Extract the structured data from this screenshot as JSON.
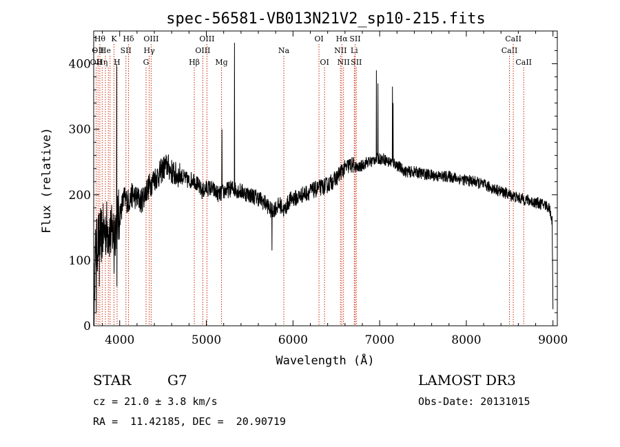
{
  "chart_data": {
    "type": "line",
    "title": "spec-56581-VB013N21V2_sp10-215.fits",
    "xlabel": "Wavelength (Å)",
    "ylabel": "Flux (relative)",
    "xlim": [
      3700,
      9050
    ],
    "ylim": [
      0,
      450
    ],
    "xticks": [
      4000,
      5000,
      6000,
      7000,
      8000,
      9000
    ],
    "yticks": [
      0,
      100,
      200,
      300,
      400
    ],
    "continuum": [
      [
        3700,
        60
      ],
      [
        3720,
        110
      ],
      [
        3750,
        130
      ],
      [
        3800,
        140
      ],
      [
        3850,
        150
      ],
      [
        3900,
        140
      ],
      [
        3950,
        150
      ],
      [
        4000,
        170
      ],
      [
        4050,
        195
      ],
      [
        4100,
        190
      ],
      [
        4150,
        200
      ],
      [
        4200,
        195
      ],
      [
        4250,
        190
      ],
      [
        4300,
        205
      ],
      [
        4350,
        215
      ],
      [
        4400,
        225
      ],
      [
        4450,
        230
      ],
      [
        4500,
        240
      ],
      [
        4550,
        245
      ],
      [
        4600,
        235
      ],
      [
        4650,
        230
      ],
      [
        4700,
        230
      ],
      [
        4750,
        225
      ],
      [
        4800,
        220
      ],
      [
        4850,
        225
      ],
      [
        4900,
        215
      ],
      [
        4950,
        205
      ],
      [
        5000,
        210
      ],
      [
        5050,
        210
      ],
      [
        5100,
        205
      ],
      [
        5150,
        200
      ],
      [
        5200,
        205
      ],
      [
        5300,
        210
      ],
      [
        5400,
        205
      ],
      [
        5500,
        200
      ],
      [
        5600,
        195
      ],
      [
        5700,
        185
      ],
      [
        5750,
        175
      ],
      [
        5800,
        180
      ],
      [
        5850,
        185
      ],
      [
        5900,
        175
      ],
      [
        5950,
        190
      ],
      [
        6000,
        195
      ],
      [
        6050,
        195
      ],
      [
        6100,
        200
      ],
      [
        6200,
        205
      ],
      [
        6300,
        210
      ],
      [
        6400,
        215
      ],
      [
        6450,
        220
      ],
      [
        6500,
        225
      ],
      [
        6550,
        235
      ],
      [
        6600,
        240
      ],
      [
        6650,
        245
      ],
      [
        6700,
        245
      ],
      [
        6750,
        240
      ],
      [
        6800,
        245
      ],
      [
        6850,
        250
      ],
      [
        6900,
        250
      ],
      [
        6950,
        255
      ],
      [
        7000,
        255
      ],
      [
        7050,
        255
      ],
      [
        7100,
        250
      ],
      [
        7150,
        250
      ],
      [
        7200,
        245
      ],
      [
        7250,
        240
      ],
      [
        7300,
        235
      ],
      [
        7400,
        235
      ],
      [
        7500,
        232
      ],
      [
        7600,
        230
      ],
      [
        7700,
        228
      ],
      [
        7800,
        228
      ],
      [
        7900,
        225
      ],
      [
        8000,
        222
      ],
      [
        8100,
        220
      ],
      [
        8200,
        215
      ],
      [
        8300,
        210
      ],
      [
        8400,
        205
      ],
      [
        8500,
        200
      ],
      [
        8600,
        195
      ],
      [
        8700,
        192
      ],
      [
        8800,
        188
      ],
      [
        8900,
        185
      ],
      [
        8960,
        180
      ],
      [
        8990,
        160
      ],
      [
        9000,
        30
      ]
    ],
    "peaks": [
      {
        "x": 3965,
        "y": 400
      },
      {
        "x": 5180,
        "y": 300
      },
      {
        "x": 5325,
        "y": 432
      },
      {
        "x": 6963,
        "y": 390
      },
      {
        "x": 6980,
        "y": 370
      },
      {
        "x": 7148,
        "y": 365
      },
      {
        "x": 7155,
        "y": 340
      }
    ],
    "dips": [
      {
        "x": 3705,
        "y": 0
      },
      {
        "x": 3730,
        "y": 20
      },
      {
        "x": 3765,
        "y": 60
      },
      {
        "x": 3935,
        "y": 80
      },
      {
        "x": 3968,
        "y": 60
      },
      {
        "x": 5758,
        "y": 115
      }
    ],
    "spectral_lines": [
      {
        "x": 3728,
        "label": "OII",
        "row": 2
      },
      {
        "x": 3750,
        "label": "OII",
        "row": 1
      },
      {
        "x": 3771,
        "label": "Hθ",
        "row": 0
      },
      {
        "x": 3798,
        "label": "Hη",
        "row": 2
      },
      {
        "x": 3835,
        "label": "He",
        "row": 1
      },
      {
        "x": 3869,
        "label": "",
        "row": 2
      },
      {
        "x": 3889,
        "label": "",
        "row": 1
      },
      {
        "x": 3934,
        "label": "K",
        "row": 0
      },
      {
        "x": 3970,
        "label": "H",
        "row": 2
      },
      {
        "x": 4072,
        "label": "SII",
        "row": 1
      },
      {
        "x": 4102,
        "label": "Hδ",
        "row": 0
      },
      {
        "x": 4304,
        "label": "G",
        "row": 2
      },
      {
        "x": 4341,
        "label": "Hγ",
        "row": 1
      },
      {
        "x": 4363,
        "label": "OIII",
        "row": 0
      },
      {
        "x": 4861,
        "label": "Hβ",
        "row": 2
      },
      {
        "x": 4959,
        "label": "OIII",
        "row": 1
      },
      {
        "x": 5007,
        "label": "OIII",
        "row": 0
      },
      {
        "x": 5175,
        "label": "Mg",
        "row": 2
      },
      {
        "x": 5894,
        "label": "Na",
        "row": 1
      },
      {
        "x": 6300,
        "label": "OI",
        "row": 0
      },
      {
        "x": 6364,
        "label": "OI",
        "row": 2
      },
      {
        "x": 6548,
        "label": "NII",
        "row": 1
      },
      {
        "x": 6563,
        "label": "Hα",
        "row": 0
      },
      {
        "x": 6583,
        "label": "NII",
        "row": 2
      },
      {
        "x": 6707,
        "label": "Li",
        "row": 1
      },
      {
        "x": 6717,
        "label": "SII",
        "row": 0
      },
      {
        "x": 6731,
        "label": "SII",
        "row": 2
      },
      {
        "x": 8498,
        "label": "CaII",
        "row": 1
      },
      {
        "x": 8542,
        "label": "CaII",
        "row": 0
      },
      {
        "x": 8662,
        "label": "CaII",
        "row": 2
      }
    ],
    "colors": {
      "spectrum": "#000000",
      "lines": "#cc2200",
      "axes": "#000000"
    }
  },
  "info": {
    "object_type": "STAR",
    "subclass": "G7",
    "survey": "LAMOST DR3",
    "cz": "cz = 21.0 ± 3.8 km/s",
    "obs_date": "Obs-Date: 20131015",
    "coords": "RA =  11.42185, DEC =  20.90719"
  }
}
